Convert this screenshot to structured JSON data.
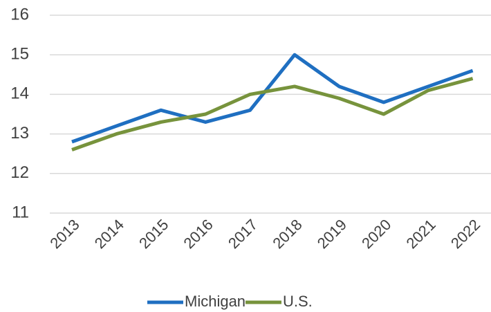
{
  "chart_data": {
    "type": "line",
    "categories": [
      "2013",
      "2014",
      "2015",
      "2016",
      "2017",
      "2018",
      "2019",
      "2020",
      "2021",
      "2022"
    ],
    "series": [
      {
        "name": "Michigan",
        "color": "#1f6fc1",
        "values": [
          12.8,
          13.2,
          13.6,
          13.3,
          13.6,
          15.0,
          14.2,
          13.8,
          14.2,
          14.6
        ]
      },
      {
        "name": "U.S.",
        "color": "#77933c",
        "values": [
          12.6,
          13.0,
          13.3,
          13.5,
          14.0,
          14.2,
          13.9,
          13.5,
          14.1,
          14.4
        ]
      }
    ],
    "ylim": [
      11,
      16
    ],
    "yticks": [
      11,
      12,
      13,
      14,
      15,
      16
    ],
    "grid": true,
    "legend": "bottom"
  }
}
